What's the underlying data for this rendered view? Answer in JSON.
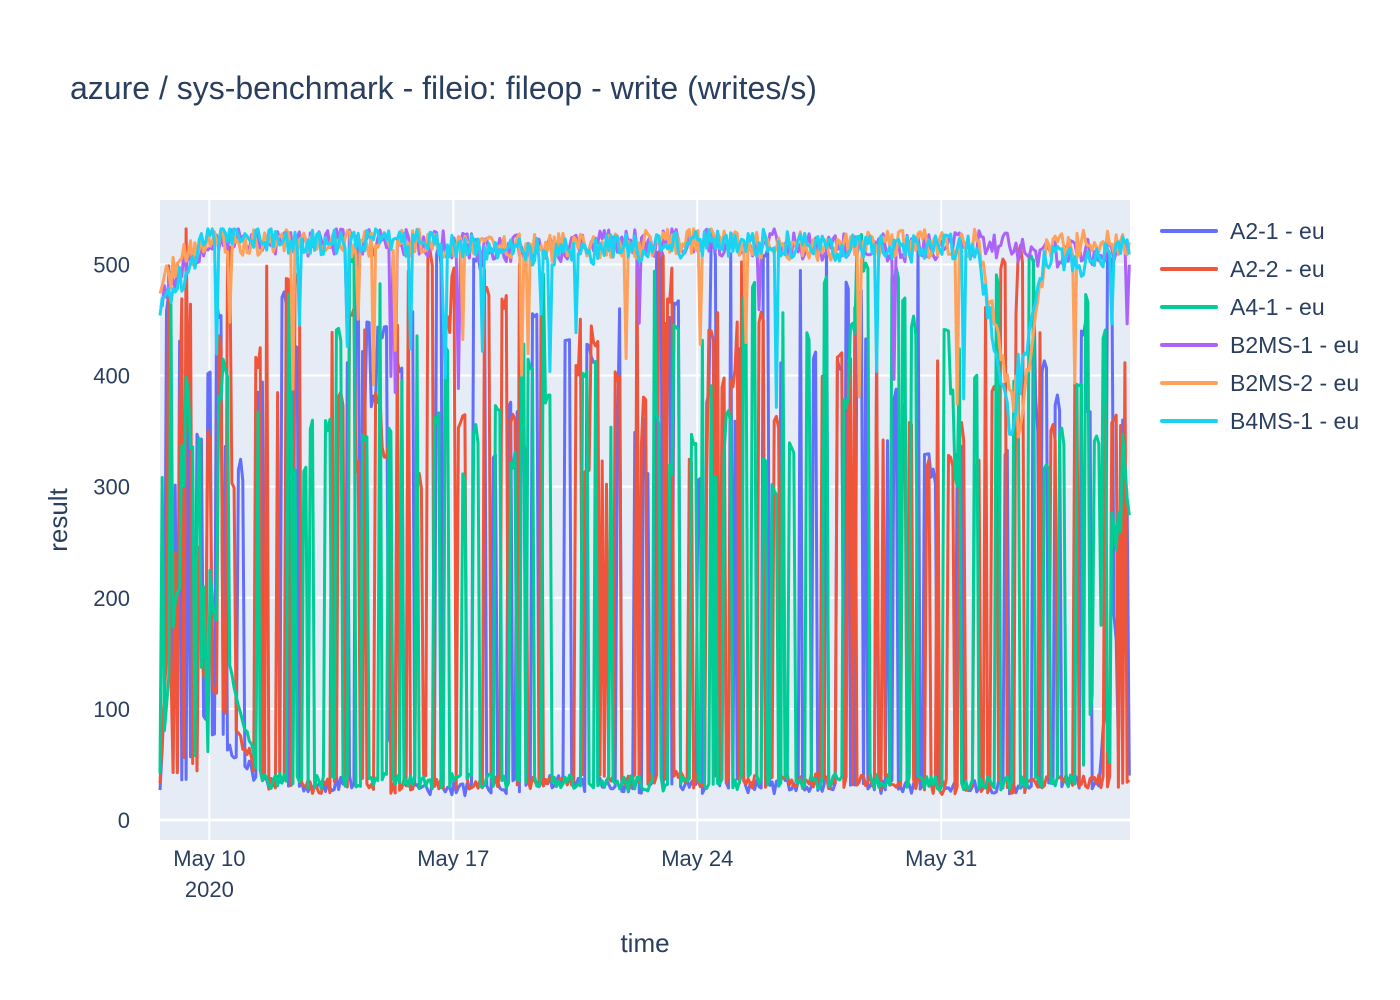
{
  "chart_data": {
    "type": "line",
    "title": "azure / sys-benchmark - fileio: fileop - write (writes/s)",
    "xlabel": "time",
    "ylabel": "result",
    "x_range": [
      "2020-05-08T14:00",
      "2020-06-05T10:00"
    ],
    "ylim": [
      -18,
      558
    ],
    "x_ticks": [
      {
        "date": "2020-05-10",
        "label": "May 10",
        "sublabel": "2020"
      },
      {
        "date": "2020-05-17",
        "label": "May 17",
        "sublabel": ""
      },
      {
        "date": "2020-05-24",
        "label": "May 24",
        "sublabel": ""
      },
      {
        "date": "2020-05-31",
        "label": "May 31",
        "sublabel": ""
      }
    ],
    "y_ticks": [
      0,
      100,
      200,
      300,
      400,
      500
    ],
    "grid": true,
    "legend_position": "right",
    "background": "#e5ecf6",
    "series": [
      {
        "name": "A2-1 - eu",
        "color": "#636efa",
        "regime": "low",
        "seed": 11,
        "x": [
          "2020-05-08T14:00",
          "2020-05-09T06:00",
          "2020-05-09T14:00",
          "2020-05-10T02:00",
          "2020-05-11T12:00",
          "2020-05-13T00:00",
          "2020-05-14T03:00",
          "2020-05-14T12:00",
          "2020-05-16T00:00",
          "2020-05-17T06:00",
          "2020-05-18T12:00",
          "2020-05-19T06:00",
          "2020-05-19T20:00",
          "2020-05-21T18:00",
          "2020-05-22T12:00",
          "2020-05-24T00:00",
          "2020-05-25T00:00",
          "2020-05-26T06:00",
          "2020-05-27T12:00",
          "2020-05-29T00:00",
          "2020-05-30T12:00",
          "2020-06-01T00:00",
          "2020-06-02T12:00",
          "2020-06-03T12:00",
          "2020-06-04T12:00",
          "2020-06-05T10:00"
        ],
        "y": [
          30,
          450,
          100,
          80,
          35,
          30,
          35,
          100,
          30,
          28,
          30,
          32,
          35,
          30,
          30,
          30,
          32,
          30,
          30,
          30,
          30,
          30,
          30,
          35,
          30,
          350
        ]
      },
      {
        "name": "A2-2 - eu",
        "color": "#ef553b",
        "regime": "low",
        "seed": 23,
        "x": [
          "2020-05-08T14:00",
          "2020-05-09T08:00",
          "2020-05-09T20:00",
          "2020-05-10T04:00",
          "2020-05-11T12:00",
          "2020-05-13T00:00",
          "2020-05-14T06:00",
          "2020-05-15T06:00",
          "2020-05-16T00:00",
          "2020-05-17T06:00",
          "2020-05-18T12:00",
          "2020-05-19T12:00",
          "2020-05-21T00:00",
          "2020-05-22T06:00",
          "2020-05-23T12:00",
          "2020-05-24T00:00",
          "2020-05-25T12:00",
          "2020-05-27T00:00",
          "2020-05-29T00:00",
          "2020-05-31T00:00",
          "2020-06-02T00:00",
          "2020-06-03T12:00",
          "2020-06-04T12:00",
          "2020-06-05T10:00"
        ],
        "y": [
          35,
          480,
          130,
          120,
          35,
          30,
          33,
          30,
          35,
          35,
          35,
          35,
          35,
          35,
          38,
          35,
          35,
          35,
          35,
          30,
          30,
          35,
          35,
          30
        ]
      },
      {
        "name": "A4-1 - eu",
        "color": "#00cc96",
        "regime": "low",
        "seed": 37,
        "x": [
          "2020-05-08T14:00",
          "2020-05-09T08:00",
          "2020-05-10T04:00",
          "2020-05-11T12:00",
          "2020-05-13T00:00",
          "2020-05-14T12:00",
          "2020-05-16T00:00",
          "2020-05-17T12:00",
          "2020-05-19T00:00",
          "2020-05-21T00:00",
          "2020-05-22T12:00",
          "2020-05-24T00:00",
          "2020-05-25T12:00",
          "2020-05-27T12:00",
          "2020-05-29T12:00",
          "2020-05-31T12:00",
          "2020-06-02T12:00",
          "2020-06-04T00:00",
          "2020-06-05T10:00"
        ],
        "y": [
          40,
          300,
          180,
          35,
          35,
          35,
          35,
          35,
          35,
          33,
          33,
          32,
          35,
          35,
          35,
          33,
          33,
          35,
          360
        ]
      },
      {
        "name": "B2MS-1 - eu",
        "color": "#ab63fa",
        "regime": "high",
        "seed": 53,
        "x": [
          "2020-05-08T14:00",
          "2020-05-09T06:00",
          "2020-05-10T00:00",
          "2020-05-12T00:00",
          "2020-05-14T00:00",
          "2020-05-16T00:00",
          "2020-05-18T00:00",
          "2020-05-20T00:00",
          "2020-05-22T00:00",
          "2020-05-24T00:00",
          "2020-05-26T00:00",
          "2020-05-28T00:00",
          "2020-05-30T00:00",
          "2020-06-01T00:00",
          "2020-06-03T00:00",
          "2020-06-05T10:00"
        ],
        "y": [
          470,
          500,
          525,
          520,
          520,
          520,
          515,
          515,
          520,
          520,
          520,
          515,
          515,
          520,
          510,
          510
        ]
      },
      {
        "name": "B2MS-2 - eu",
        "color": "#ffa15a",
        "regime": "high",
        "seed": 71,
        "x": [
          "2020-05-08T14:00",
          "2020-05-09T06:00",
          "2020-05-10T00:00",
          "2020-05-12T00:00",
          "2020-05-14T00:00",
          "2020-05-16T00:00",
          "2020-05-18T00:00",
          "2020-05-20T00:00",
          "2020-05-22T00:00",
          "2020-05-24T00:00",
          "2020-05-26T00:00",
          "2020-05-28T00:00",
          "2020-05-30T00:00",
          "2020-06-01T00:00",
          "2020-06-02T06:00",
          "2020-06-03T00:00",
          "2020-06-04T00:00",
          "2020-06-05T10:00"
        ],
        "y": [
          480,
          505,
          522,
          520,
          518,
          520,
          515,
          515,
          518,
          520,
          518,
          515,
          518,
          520,
          350,
          515,
          518,
          520
        ]
      },
      {
        "name": "B4MS-1 - eu",
        "color": "#19d3f3",
        "regime": "high",
        "seed": 89,
        "x": [
          "2020-05-08T14:00",
          "2020-05-09T06:00",
          "2020-05-10T00:00",
          "2020-05-12T00:00",
          "2020-05-14T00:00",
          "2020-05-16T00:00",
          "2020-05-18T00:00",
          "2020-05-20T00:00",
          "2020-05-22T00:00",
          "2020-05-24T00:00",
          "2020-05-26T00:00",
          "2020-05-28T00:00",
          "2020-05-30T00:00",
          "2020-06-01T00:00",
          "2020-06-02T00:00",
          "2020-06-03T00:00",
          "2020-06-04T00:00",
          "2020-06-05T10:00"
        ],
        "y": [
          460,
          490,
          528,
          522,
          520,
          520,
          515,
          510,
          515,
          518,
          520,
          515,
          515,
          515,
          350,
          510,
          500,
          520
        ]
      }
    ]
  }
}
